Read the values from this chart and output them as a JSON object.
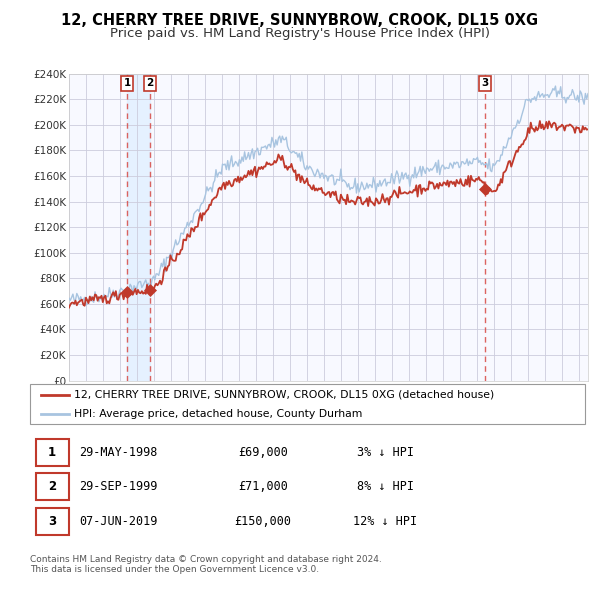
{
  "title": "12, CHERRY TREE DRIVE, SUNNYBROW, CROOK, DL15 0XG",
  "subtitle": "Price paid vs. HM Land Registry's House Price Index (HPI)",
  "ylim": [
    0,
    240000
  ],
  "yticks": [
    0,
    20000,
    40000,
    60000,
    80000,
    100000,
    120000,
    140000,
    160000,
    180000,
    200000,
    220000,
    240000
  ],
  "ytick_labels": [
    "£0",
    "£20K",
    "£40K",
    "£60K",
    "£80K",
    "£100K",
    "£120K",
    "£140K",
    "£160K",
    "£180K",
    "£200K",
    "£220K",
    "£240K"
  ],
  "hpi_color": "#a8c4e0",
  "price_color": "#c0392b",
  "vline_color": "#d9534f",
  "shade_color": "#ddeeff",
  "background_color": "#ffffff",
  "chart_bg": "#f8f9ff",
  "grid_color": "#ccccdd",
  "sale_year_nums": [
    1998.4137,
    1999.7452,
    2019.4384
  ],
  "sale_prices": [
    69000,
    71000,
    150000
  ],
  "sale_labels": [
    "1",
    "2",
    "3"
  ],
  "legend_property": "12, CHERRY TREE DRIVE, SUNNYBROW, CROOK, DL15 0XG (detached house)",
  "legend_hpi": "HPI: Average price, detached house, County Durham",
  "table_rows": [
    [
      "1",
      "29-MAY-1998",
      "£69,000",
      "3% ↓ HPI"
    ],
    [
      "2",
      "29-SEP-1999",
      "£71,000",
      "8% ↓ HPI"
    ],
    [
      "3",
      "07-JUN-2019",
      "£150,000",
      "12% ↓ HPI"
    ]
  ],
  "footnote": "Contains HM Land Registry data © Crown copyright and database right 2024.\nThis data is licensed under the Open Government Licence v3.0.",
  "title_fontsize": 10.5,
  "subtitle_fontsize": 9.5,
  "xlim_start": 1995.0,
  "xlim_end": 2025.5
}
